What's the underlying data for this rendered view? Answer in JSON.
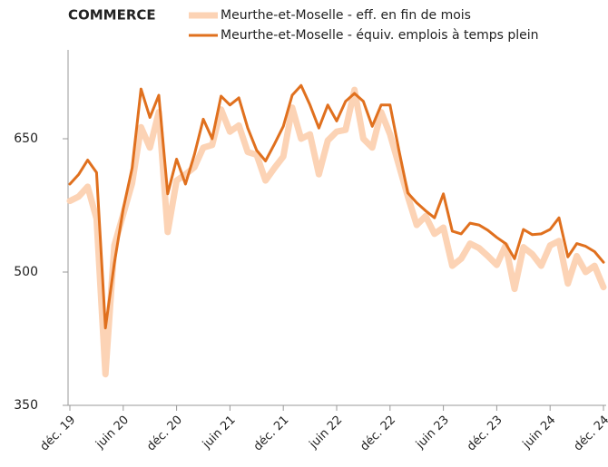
{
  "chart_data": {
    "type": "line",
    "title": "COMMERCE",
    "categories": [
      "déc. 19",
      null,
      null,
      null,
      null,
      null,
      "juin 20",
      null,
      null,
      null,
      null,
      null,
      "déc. 20",
      null,
      null,
      null,
      null,
      null,
      "juin 21",
      null,
      null,
      null,
      null,
      null,
      "déc. 21",
      null,
      null,
      null,
      null,
      null,
      "juin 22",
      null,
      null,
      null,
      null,
      null,
      "déc. 22",
      null,
      null,
      null,
      null,
      null,
      "juin 23",
      null,
      null,
      null,
      null,
      null,
      "déc. 23",
      null,
      null,
      null,
      null,
      null,
      "juin 24",
      null,
      null,
      null,
      null,
      null,
      "déc. 24"
    ],
    "series": [
      {
        "name": "Meurthe-et-Moselle - eff. en fin de mois",
        "color": "#fcd3b5",
        "values": [
          580,
          585,
          596,
          560,
          385,
          530,
          565,
          600,
          663,
          640,
          680,
          545,
          603,
          610,
          618,
          640,
          643,
          683,
          658,
          665,
          635,
          632,
          603,
          617,
          630,
          685,
          650,
          655,
          610,
          648,
          658,
          660,
          705,
          650,
          640,
          680,
          655,
          620,
          585,
          553,
          563,
          543,
          550,
          507,
          515,
          532,
          527,
          518,
          508,
          530,
          481,
          528,
          520,
          507,
          530,
          535,
          487,
          518,
          500,
          507,
          483
        ]
      },
      {
        "name": "Meurthe-et-Moselle - équiv. emplois à temps plein",
        "color": "#e0701e",
        "values": [
          599,
          610,
          626,
          612,
          437,
          510,
          571,
          617,
          706,
          674,
          699,
          588,
          627,
          599,
          632,
          672,
          650,
          698,
          688,
          696,
          662,
          637,
          625,
          644,
          664,
          699,
          710,
          688,
          662,
          688,
          670,
          692,
          701,
          692,
          664,
          688,
          688,
          637,
          589,
          578,
          569,
          561,
          588,
          546,
          543,
          555,
          553,
          547,
          539,
          532,
          515,
          548,
          542,
          543,
          548,
          561,
          517,
          532,
          529,
          523,
          511
        ]
      }
    ],
    "ylim": [
      350,
      750
    ],
    "yticks": [
      350,
      500,
      650
    ]
  }
}
